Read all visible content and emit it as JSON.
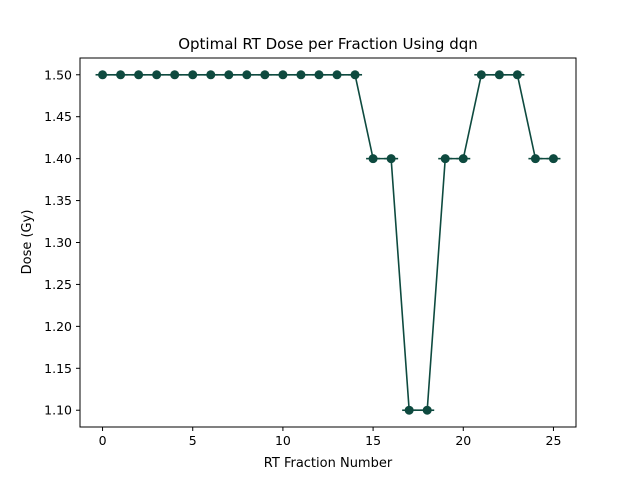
{
  "chart_data": {
    "type": "line",
    "title": "Optimal RT Dose per Fraction Using dqn",
    "xlabel": "RT Fraction Number",
    "ylabel": "Dose (Gy)",
    "xlim": [
      -1.25,
      26.25
    ],
    "ylim": [
      1.08,
      1.52
    ],
    "xticks": [
      0,
      5,
      10,
      15,
      20,
      25
    ],
    "xtick_labels": [
      "0",
      "5",
      "10",
      "15",
      "20",
      "25"
    ],
    "yticks": [
      1.1,
      1.15,
      1.2,
      1.25,
      1.3,
      1.35,
      1.4,
      1.45,
      1.5
    ],
    "ytick_labels": [
      "1.10",
      "1.15",
      "1.20",
      "1.25",
      "1.30",
      "1.35",
      "1.40",
      "1.45",
      "1.50"
    ],
    "grid": false,
    "series": [
      {
        "color": "#0e4a3f",
        "marker": "circle",
        "x": [
          0,
          1,
          2,
          3,
          4,
          5,
          6,
          7,
          8,
          9,
          10,
          11,
          12,
          13,
          14,
          15,
          16,
          17,
          18,
          19,
          20,
          21,
          22,
          23,
          24,
          25
        ],
        "y": [
          1.5,
          1.5,
          1.5,
          1.5,
          1.5,
          1.5,
          1.5,
          1.5,
          1.5,
          1.5,
          1.5,
          1.5,
          1.5,
          1.5,
          1.5,
          1.4,
          1.4,
          1.1,
          1.1,
          1.4,
          1.4,
          1.5,
          1.5,
          1.5,
          1.4,
          1.4
        ]
      }
    ]
  }
}
